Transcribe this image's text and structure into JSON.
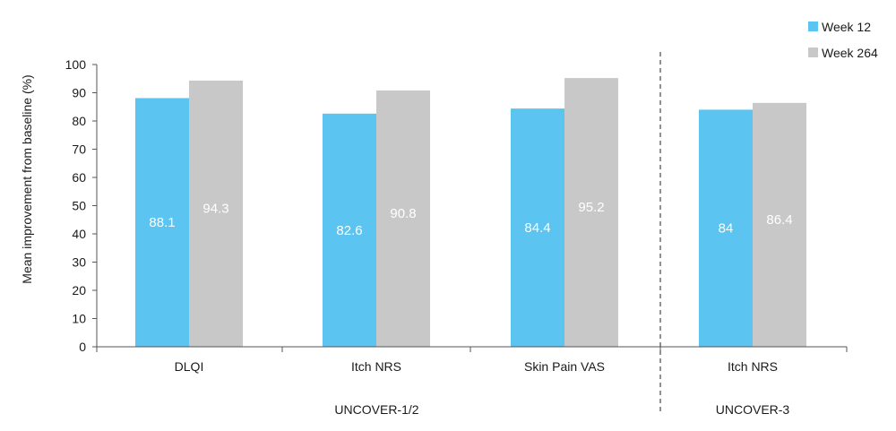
{
  "chart_data": {
    "type": "bar",
    "categories": [
      "DLQI",
      "Itch NRS",
      "Skin Pain VAS",
      "Itch NRS"
    ],
    "groups": [
      {
        "label": "UNCOVER-1/2",
        "categories": [
          0,
          1,
          2
        ]
      },
      {
        "label": "UNCOVER-3",
        "categories": [
          3
        ]
      }
    ],
    "series": [
      {
        "name": "Week 12",
        "values": [
          88.1,
          82.6,
          84.4,
          84
        ],
        "color": "#5bc4f0"
      },
      {
        "name": "Week 264",
        "values": [
          94.3,
          90.8,
          95.2,
          86.4
        ],
        "color": "#c8c8c8"
      }
    ],
    "ylabel": "Mean improvement from baseline (%)",
    "ylim": [
      0,
      100
    ],
    "yticks": [
      0,
      10,
      20,
      30,
      40,
      50,
      60,
      70,
      80,
      90,
      100
    ],
    "grid": false,
    "legend": "top-right",
    "separator": "dashed vertical line between UNCOVER-1/2 and UNCOVER-3"
  }
}
